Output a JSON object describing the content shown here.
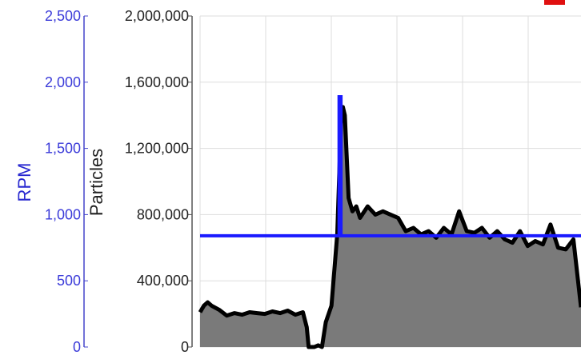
{
  "colors": {
    "rpm": "#1a1aff",
    "rpm_axis": "#4444cc",
    "particles_line": "#000000",
    "particles_fill": "#7a7a7a",
    "grid": "#dddddd",
    "legend_marker": "#e01010"
  },
  "chart_data": {
    "type": "area",
    "grid": true,
    "x_range": [
      0,
      100
    ],
    "axes": {
      "rpm": {
        "label": "RPM",
        "ylim": [
          0,
          2500
        ],
        "ticks": [
          0,
          500,
          1000,
          1500,
          2000,
          2500
        ],
        "tick_labels": [
          "0",
          "500",
          "1,000",
          "1,500",
          "2,000",
          "2,500"
        ]
      },
      "particles": {
        "label": "Particles",
        "ylim": [
          0,
          2000000
        ],
        "ticks": [
          0,
          400000,
          800000,
          1200000,
          1600000,
          2000000
        ],
        "tick_labels": [
          "0",
          "400,000",
          "800,000",
          "1,200,000",
          "1,600,000",
          "2,000,000"
        ]
      }
    },
    "series": [
      {
        "axis": "particles",
        "style": "area",
        "x": [
          0,
          1,
          2,
          3,
          5,
          7,
          9,
          11,
          13,
          15,
          17,
          19,
          21,
          23,
          25,
          27,
          28,
          28.5,
          29,
          30,
          31,
          32,
          33,
          34.5,
          36,
          37,
          37.5,
          38,
          39,
          40,
          41,
          42,
          44,
          46,
          48,
          50,
          52,
          54,
          56,
          58,
          60,
          62,
          64,
          66,
          68,
          70,
          72,
          74,
          76,
          78,
          80,
          82,
          84,
          86,
          88,
          90,
          92,
          94,
          96,
          98,
          100
        ],
        "y": [
          210000,
          250000,
          270000,
          250000,
          225000,
          190000,
          205000,
          195000,
          210000,
          205000,
          200000,
          215000,
          205000,
          220000,
          195000,
          210000,
          120000,
          0,
          0,
          0,
          10000,
          0,
          150000,
          250000,
          680000,
          1350000,
          1450000,
          1400000,
          900000,
          820000,
          850000,
          780000,
          850000,
          800000,
          820000,
          800000,
          780000,
          700000,
          720000,
          680000,
          700000,
          660000,
          720000,
          680000,
          820000,
          700000,
          690000,
          720000,
          660000,
          700000,
          650000,
          630000,
          700000,
          610000,
          640000,
          620000,
          740000,
          600000,
          590000,
          650000,
          240000
        ]
      },
      {
        "axis": "rpm",
        "style": "line",
        "x": [
          0,
          36.5,
          36.5,
          37,
          37,
          100
        ],
        "y": [
          840,
          840,
          1890,
          1890,
          840,
          840
        ]
      }
    ]
  }
}
